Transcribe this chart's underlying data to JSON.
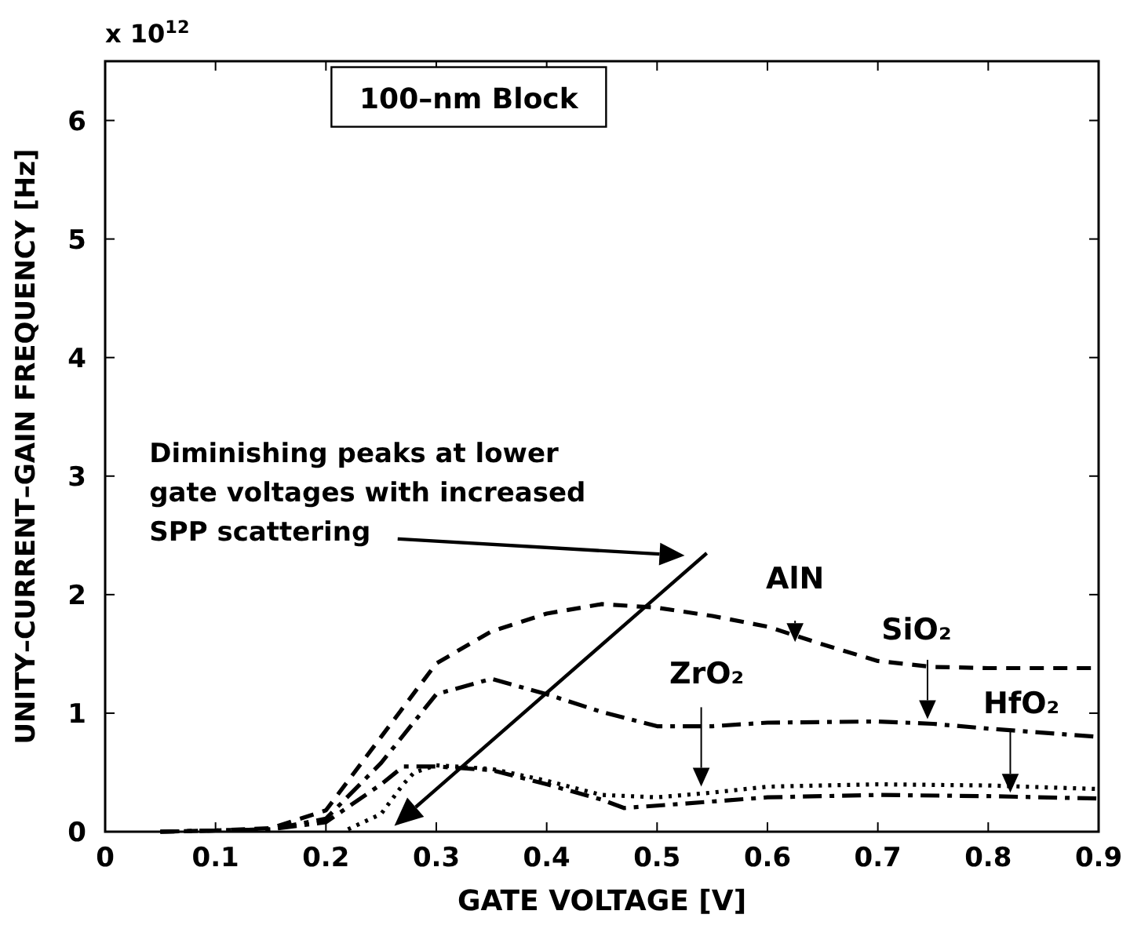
{
  "chart_data": {
    "type": "line",
    "title": "100–nm Block",
    "xlabel": "GATE VOLTAGE [V]",
    "ylabel": "UNITY–CURRENT–GAIN FREQUENCY [Hz]",
    "annotations": [
      "x 10$^{12}$",
      "Diminishing peaks at lower gate voltages with increased SPP scattering"
    ],
    "xlim": [
      0,
      0.9
    ],
    "ylim": [
      0,
      6.5
    ],
    "xticks": [
      0,
      0.1,
      0.2,
      0.3,
      0.4,
      0.5,
      0.6,
      0.7,
      0.8,
      0.9
    ],
    "yticks": [
      0,
      1,
      2,
      3,
      4,
      5,
      6
    ],
    "grid": false,
    "series": [
      {
        "name": "AlN",
        "color": "#000000",
        "line_style": "dashed",
        "x": [
          0.05,
          0.1,
          0.15,
          0.2,
          0.25,
          0.3,
          0.35,
          0.4,
          0.45,
          0.5,
          0.55,
          0.6,
          0.65,
          0.7,
          0.75,
          0.8,
          0.85,
          0.9
        ],
        "values": [
          0,
          0.01,
          0.03,
          0.18,
          0.8,
          1.42,
          1.69,
          1.84,
          1.92,
          1.89,
          1.82,
          1.73,
          1.58,
          1.44,
          1.39,
          1.38,
          1.38,
          1.38
        ]
      },
      {
        "name": "SiO₂",
        "color": "#000000",
        "line_style": "dashdot",
        "x": [
          0.05,
          0.1,
          0.15,
          0.2,
          0.25,
          0.3,
          0.35,
          0.4,
          0.45,
          0.5,
          0.55,
          0.6,
          0.7,
          0.75,
          0.8,
          0.9
        ],
        "values": [
          0,
          0.01,
          0.02,
          0.11,
          0.58,
          1.16,
          1.29,
          1.16,
          1.01,
          0.89,
          0.89,
          0.92,
          0.93,
          0.91,
          0.87,
          0.8
        ]
      },
      {
        "name": "ZrO₂",
        "color": "#000000",
        "line_style": "dotted",
        "x": [
          0.22,
          0.25,
          0.27,
          0.28,
          0.3,
          0.35,
          0.4,
          0.45,
          0.5,
          0.55,
          0.6,
          0.7,
          0.8,
          0.9
        ],
        "values": [
          0.02,
          0.15,
          0.4,
          0.5,
          0.56,
          0.53,
          0.43,
          0.31,
          0.29,
          0.33,
          0.38,
          0.4,
          0.39,
          0.36
        ]
      },
      {
        "name": "HfO₂",
        "color": "#000000",
        "line_style": "dashdot",
        "x": [
          0.05,
          0.1,
          0.15,
          0.2,
          0.25,
          0.27,
          0.3,
          0.35,
          0.4,
          0.45,
          0.47,
          0.5,
          0.6,
          0.7,
          0.8,
          0.9
        ],
        "values": [
          0,
          0.01,
          0.02,
          0.08,
          0.4,
          0.55,
          0.55,
          0.52,
          0.4,
          0.27,
          0.2,
          0.22,
          0.29,
          0.31,
          0.3,
          0.28
        ]
      }
    ]
  }
}
